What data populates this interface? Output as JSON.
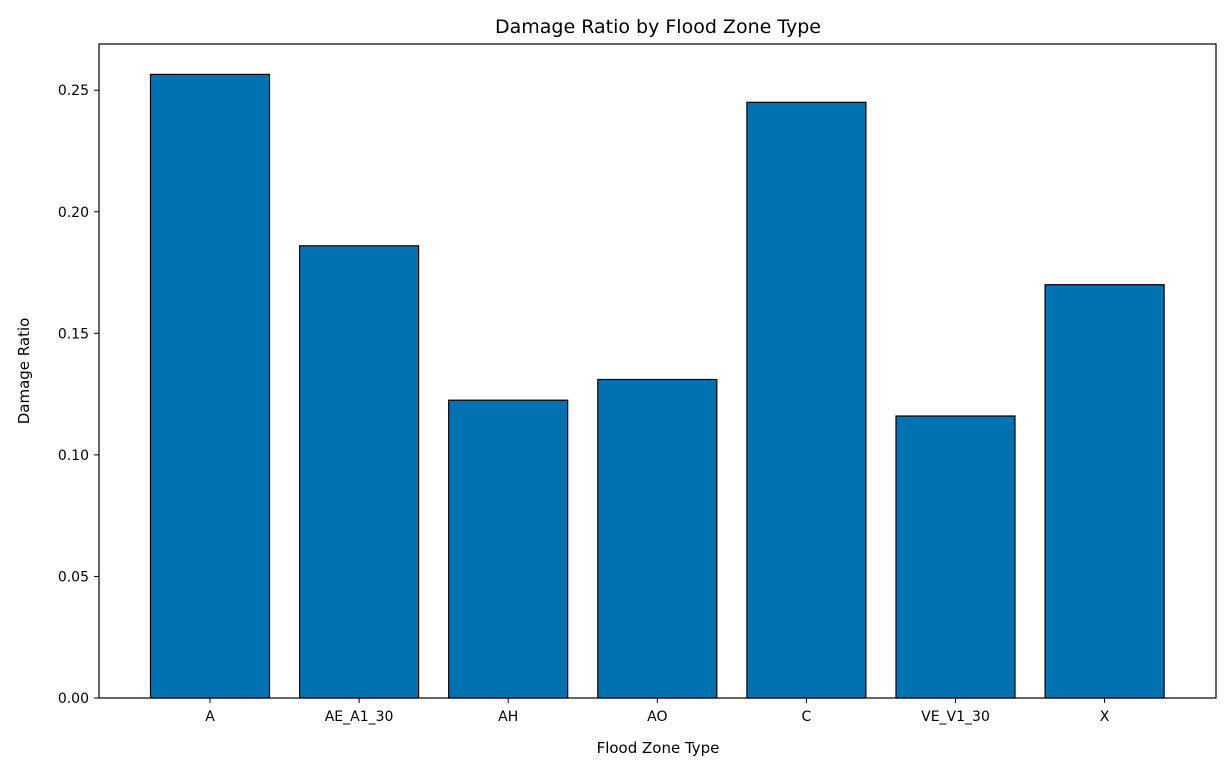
{
  "chart_data": {
    "type": "bar",
    "title": "Damage Ratio by Flood Zone Type",
    "xlabel": "Flood Zone Type",
    "ylabel": "Damage Ratio",
    "categories": [
      "A",
      "AE_A1_30",
      "AH",
      "AO",
      "C",
      "VE_V1_30",
      "X"
    ],
    "values": [
      0.2565,
      0.186,
      0.1225,
      0.131,
      0.245,
      0.116,
      0.17
    ],
    "ylim": [
      0,
      0.269
    ],
    "yticks": [
      0.0,
      0.05,
      0.1,
      0.15,
      0.2,
      0.25
    ],
    "ytick_labels": [
      "0.00",
      "0.05",
      "0.10",
      "0.15",
      "0.20",
      "0.25"
    ],
    "bar_color": "#0072b2",
    "edge_color": "#000000",
    "grid": false,
    "legend": "none"
  }
}
